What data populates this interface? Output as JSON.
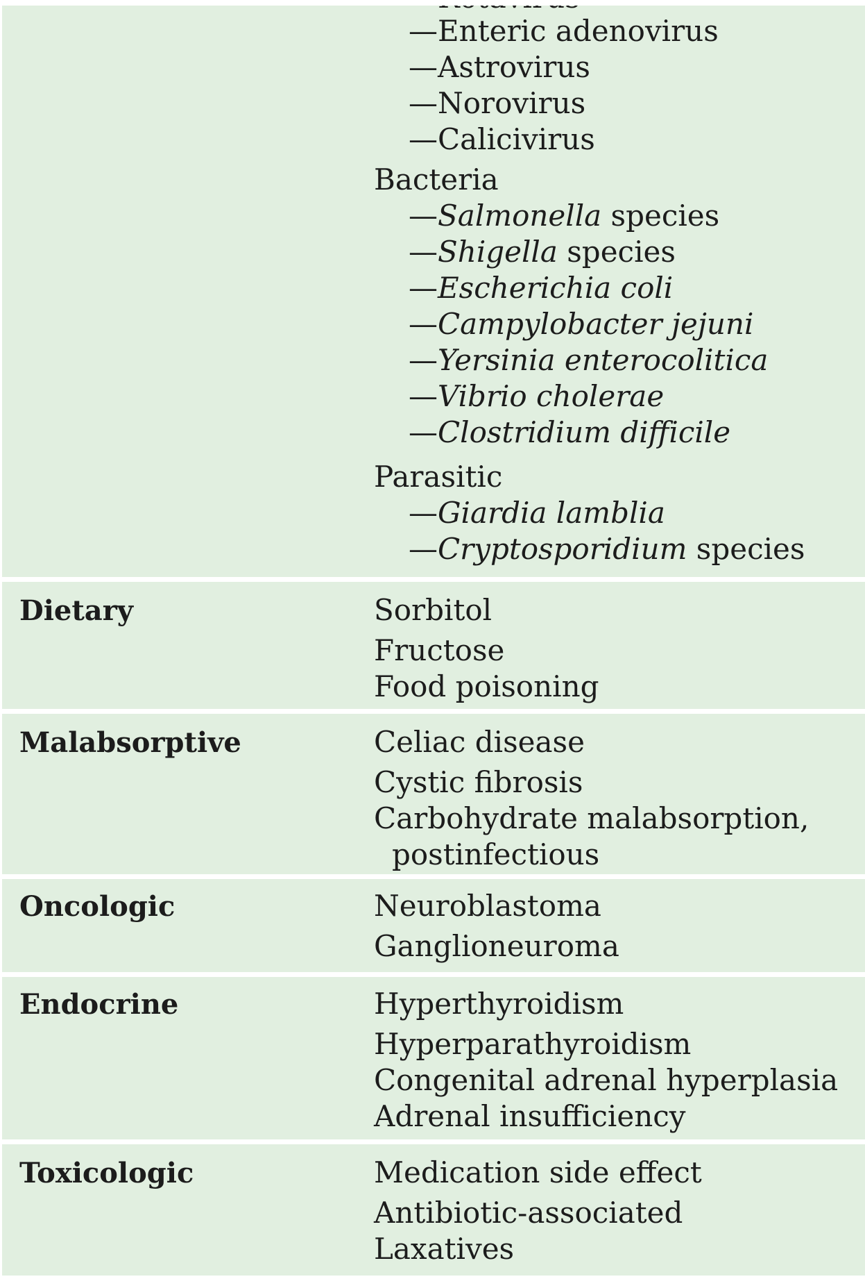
{
  "infectious_continued": {
    "viral_items": [
      "Rotavirus",
      "Enteric adenovirus",
      "Astrovirus",
      "Norovirus",
      "Calicivirus"
    ],
    "bacteria_label": "Bacteria",
    "bacteria_items": [
      {
        "italic": "Salmonella",
        "rest": " species"
      },
      {
        "italic": "Shigella",
        "rest": " species"
      },
      {
        "italic": "Escherichia coli",
        "rest": ""
      },
      {
        "italic": "Campylobacter jejuni",
        "rest": ""
      },
      {
        "italic": "Yersinia enterocolitica",
        "rest": ""
      },
      {
        "italic": "Vibrio cholerae",
        "rest": ""
      },
      {
        "italic": "Clostridium difficile",
        "rest": ""
      }
    ],
    "parasitic_label": "Parasitic",
    "parasitic_items": [
      {
        "italic": "Giardia lamblia",
        "rest": ""
      },
      {
        "italic": "Cryptosporidium",
        "rest": " species"
      }
    ]
  },
  "dash": "—",
  "rows": [
    {
      "category": "Dietary",
      "items": [
        "Sorbitol",
        "Fructose",
        "Food poisoning"
      ]
    },
    {
      "category": "Malabsorptive",
      "items": [
        "Celiac disease",
        "Cystic fibrosis",
        "Carbohydrate malabsorption,",
        "postinfectious"
      ]
    },
    {
      "category": "Oncologic",
      "items": [
        "Neuroblastoma",
        "Ganglioneuroma"
      ]
    },
    {
      "category": "Endocrine",
      "items": [
        "Hyperthyroidism",
        "Hyperparathyroidism",
        "Congenital adrenal hyperplasia",
        "Adrenal insufficiency"
      ]
    },
    {
      "category": "Toxicologic",
      "items": [
        "Medication side effect",
        "Antibiotic-associated",
        "Laxatives"
      ]
    }
  ]
}
